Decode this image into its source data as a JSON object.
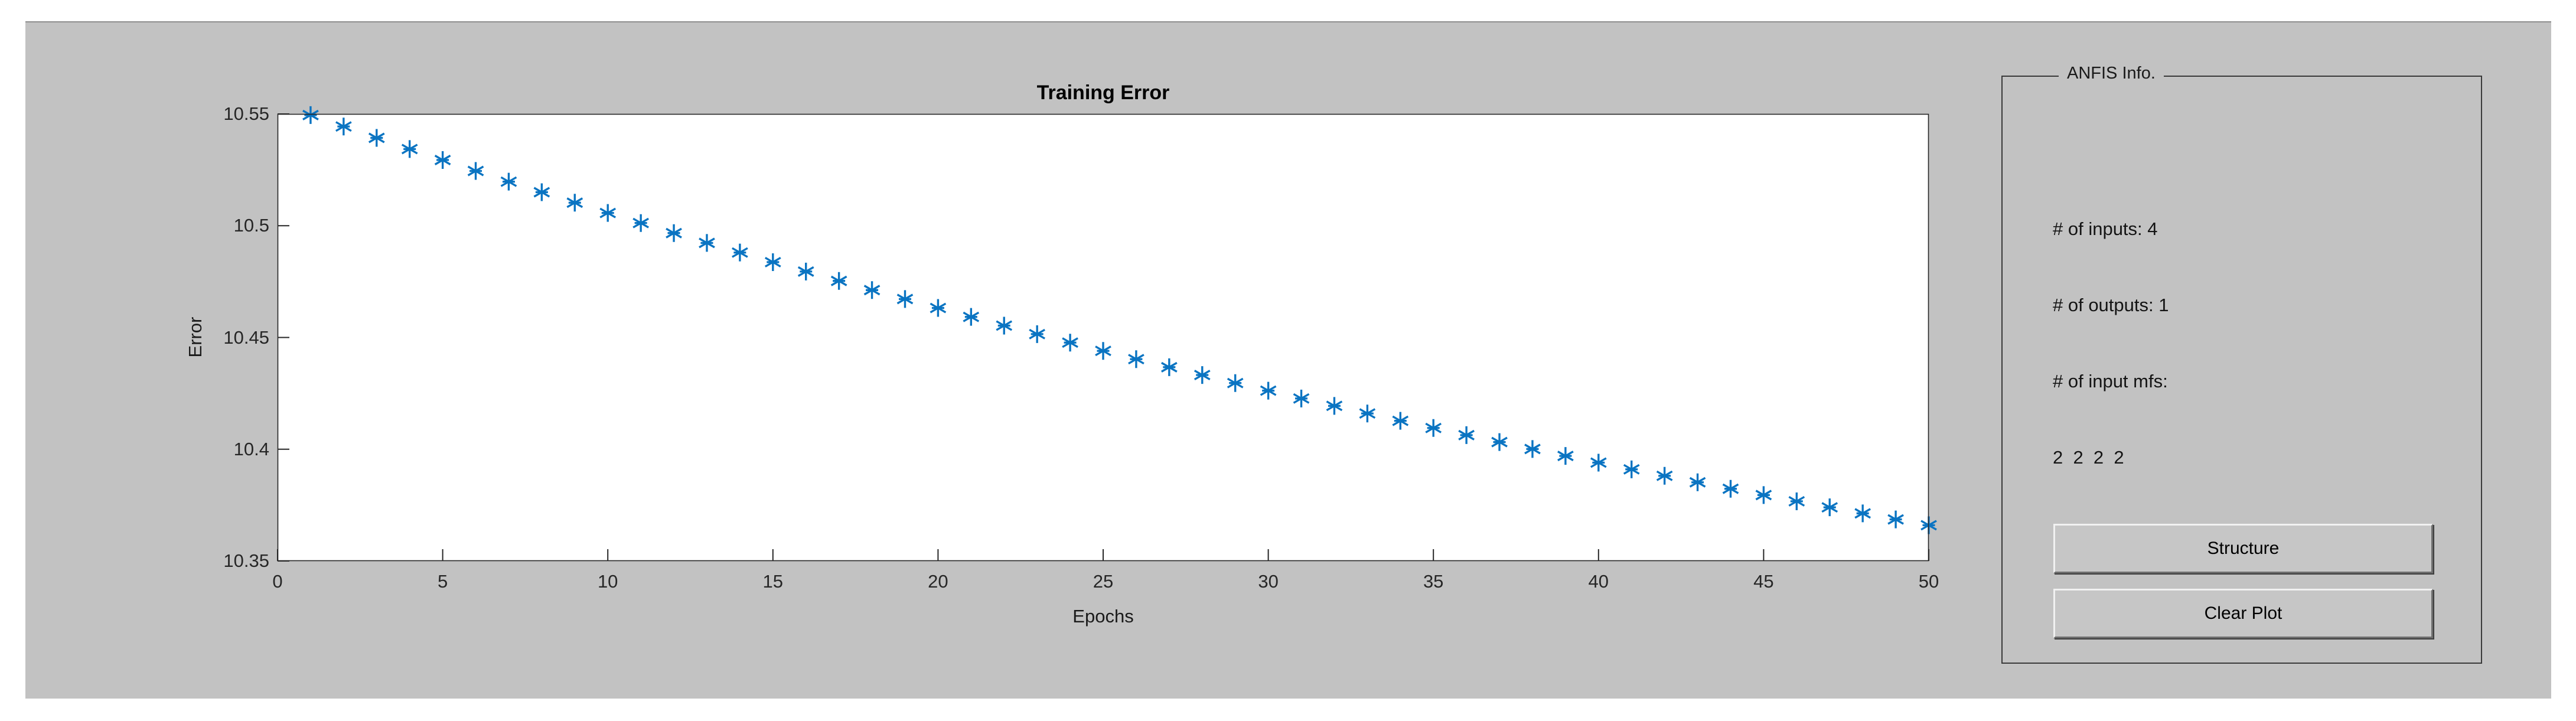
{
  "figure": {
    "page_background": "#ffffff",
    "canvas_background": "#c2c2c2",
    "axis_color": "#262626"
  },
  "chart_data": {
    "type": "scatter",
    "title": "Training Error",
    "xlabel": "Epochs",
    "ylabel": "Error",
    "xlim": [
      0,
      50
    ],
    "ylim": [
      10.35,
      10.55
    ],
    "x_ticks": [
      0,
      5,
      10,
      15,
      20,
      25,
      30,
      35,
      40,
      45,
      50
    ],
    "y_ticks": [
      10.35,
      10.4,
      10.45,
      10.5,
      10.55
    ],
    "grid": false,
    "legend": null,
    "marker": "asterisk",
    "marker_color": "#0a74c2",
    "epochs": [
      1,
      2,
      3,
      4,
      5,
      6,
      7,
      8,
      9,
      10,
      11,
      12,
      13,
      14,
      15,
      16,
      17,
      18,
      19,
      20,
      21,
      22,
      23,
      24,
      25,
      26,
      27,
      28,
      29,
      30,
      31,
      32,
      33,
      34,
      35,
      36,
      37,
      38,
      39,
      40,
      41,
      42,
      43,
      44,
      45,
      46,
      47,
      48,
      49,
      50
    ],
    "values": [
      10.5495,
      10.5444,
      10.5393,
      10.5343,
      10.5294,
      10.5245,
      10.5197,
      10.515,
      10.5103,
      10.5057,
      10.5012,
      10.4967,
      10.4923,
      10.488,
      10.4837,
      10.4795,
      10.4753,
      10.4712,
      10.4672,
      10.4632,
      10.4592,
      10.4553,
      10.4515,
      10.4477,
      10.444,
      10.4403,
      10.4367,
      10.4332,
      10.4296,
      10.4262,
      10.4227,
      10.4194,
      10.416,
      10.4127,
      10.4095,
      10.4063,
      10.4032,
      10.4001,
      10.397,
      10.394,
      10.391,
      10.3881,
      10.3852,
      10.3823,
      10.3795,
      10.3767,
      10.374,
      10.3713,
      10.3686,
      10.366
    ]
  },
  "panel": {
    "title": "ANFIS Info.",
    "info_lines": [
      "# of inputs: 4",
      "# of outputs: 1",
      "# of input mfs:",
      "2  2  2  2"
    ],
    "buttons": [
      {
        "label": "Structure"
      },
      {
        "label": "Clear Plot"
      }
    ]
  }
}
